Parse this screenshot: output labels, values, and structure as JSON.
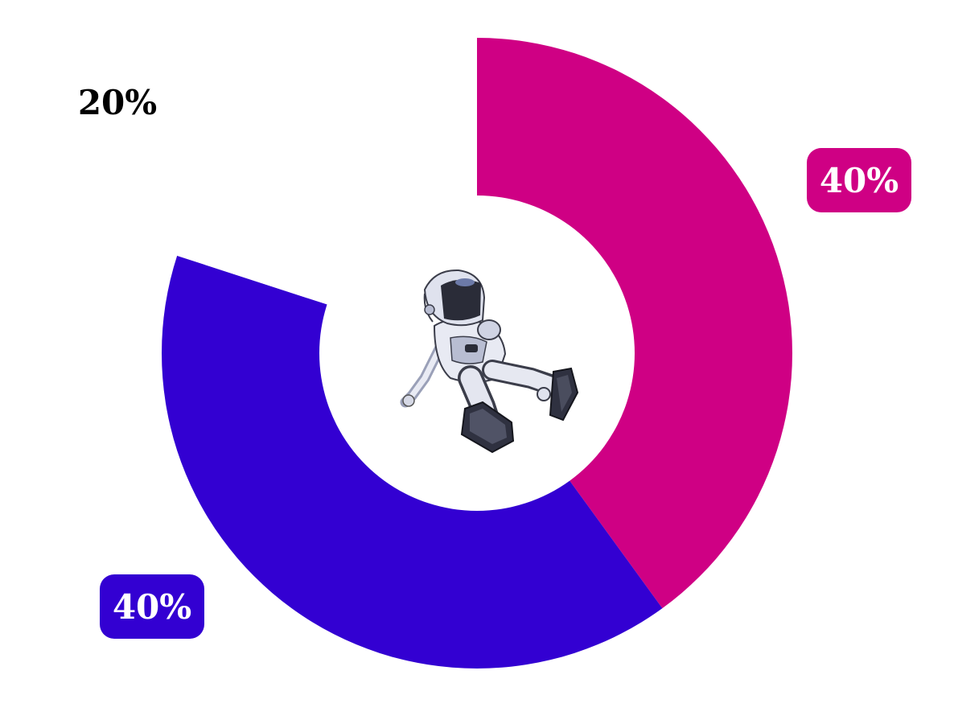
{
  "chart_data": {
    "type": "pie",
    "variant": "donut",
    "title": "",
    "slices": [
      {
        "value": 40,
        "label": "40%",
        "color": "#CF0084",
        "label_style": "badge"
      },
      {
        "value": 40,
        "label": "40%",
        "color": "#3300D2",
        "label_style": "badge"
      },
      {
        "value": 20,
        "label": "20%",
        "color": "#FFFFFF",
        "label_style": "plain"
      }
    ],
    "start": "top",
    "direction": "clockwise",
    "center_image": "robot-figure"
  }
}
